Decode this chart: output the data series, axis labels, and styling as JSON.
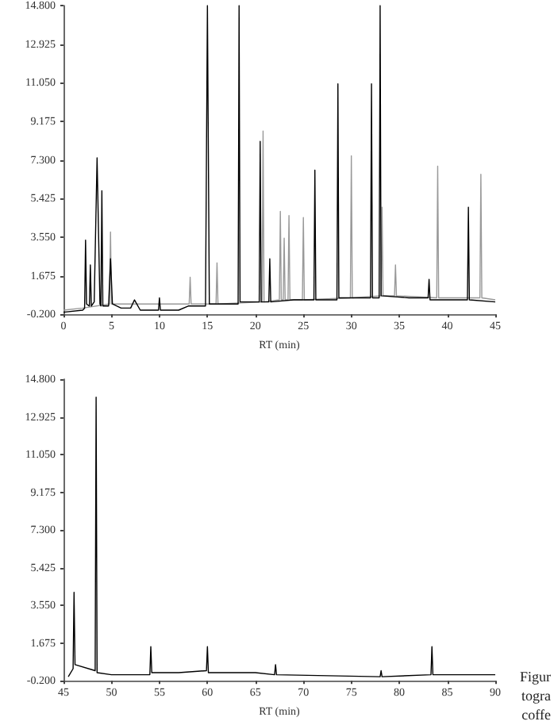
{
  "chart_data": [
    {
      "type": "line",
      "xlabel": "RT (min)",
      "marker": "none",
      "grid": false,
      "xlim": [
        0,
        45
      ],
      "xticks": [
        0,
        5,
        10,
        15,
        20,
        25,
        30,
        35,
        40,
        45
      ],
      "ylim": [
        -0.2,
        14.8
      ],
      "yticks": [
        {
          "value": -0.2,
          "label": "-0.200"
        },
        {
          "value": 1.675,
          "label": "1.675"
        },
        {
          "value": 3.55,
          "label": "3.550"
        },
        {
          "value": 5.425,
          "label": "5.425"
        },
        {
          "value": 7.3,
          "label": "7.300"
        },
        {
          "value": 9.175,
          "label": "9.175"
        },
        {
          "value": 11.05,
          "label": "11.050"
        },
        {
          "value": 12.925,
          "label": "12.925"
        },
        {
          "value": 14.8,
          "label": "14.800"
        }
      ],
      "series": [
        {
          "color": "#999999",
          "x": [
            0,
            2,
            4.8,
            4.9,
            5.0,
            13.1,
            13.2,
            13.3,
            15.9,
            16,
            16.1,
            20.7,
            20.8,
            20.9,
            22.5,
            22.6,
            22.7,
            22.9,
            23,
            23.1,
            23.4,
            23.5,
            23.6,
            24.9,
            25,
            25.1,
            29.9,
            30,
            30.1,
            33.1,
            33.2,
            33.3,
            34.5,
            34.6,
            34.7,
            38.9,
            39,
            39.1,
            43.4,
            43.5,
            43.6,
            45
          ],
          "values": [
            0,
            0.1,
            0.3,
            3.8,
            0.3,
            0.3,
            1.6,
            0.3,
            0.3,
            2.3,
            0.3,
            0.4,
            8.7,
            0.4,
            0.5,
            4.8,
            0.5,
            0.5,
            3.5,
            0.5,
            0.5,
            4.6,
            0.5,
            0.5,
            4.5,
            0.5,
            0.6,
            7.5,
            0.6,
            0.7,
            5,
            0.7,
            0.7,
            2.2,
            0.7,
            0.6,
            7,
            0.6,
            0.6,
            6.6,
            0.6,
            0.5
          ]
        },
        {
          "color": "#000000",
          "x": [
            0,
            2,
            2.2,
            2.3,
            2.4,
            2.7,
            2.8,
            2.9,
            3.2,
            3.5,
            3.8,
            3.9,
            4.0,
            4.1,
            4.7,
            4.9,
            5.1,
            6,
            7,
            7.4,
            8,
            9.9,
            10,
            10.1,
            12,
            13,
            14.8,
            15,
            15.2,
            17,
            18.2,
            18.3,
            18.4,
            20,
            20.4,
            20.5,
            20.6,
            21.4,
            21.5,
            21.6,
            24,
            26.1,
            26.2,
            26.3,
            28,
            28.5,
            28.6,
            28.7,
            30,
            32,
            32.1,
            32.2,
            32.9,
            33,
            33.1,
            36,
            38,
            38.1,
            38.2,
            42.1,
            42.2,
            42.3,
            45
          ],
          "values": [
            -0.1,
            0,
            0.1,
            3.4,
            0.3,
            0.2,
            2.2,
            0.2,
            0.4,
            7.4,
            0.3,
            0.2,
            5.8,
            0.2,
            0.2,
            2.5,
            0.3,
            0.1,
            0.1,
            0.5,
            0,
            0,
            0.6,
            0,
            0,
            0.2,
            0.2,
            14.8,
            0.3,
            0.3,
            0.3,
            14.8,
            0.4,
            0.4,
            0.4,
            8.2,
            0.4,
            0.4,
            2.5,
            0.4,
            0.5,
            0.5,
            6.8,
            0.5,
            0.5,
            0.5,
            11,
            0.6,
            0.6,
            0.6,
            11,
            0.6,
            0.6,
            14.8,
            0.7,
            0.6,
            0.6,
            1.5,
            0.5,
            0.5,
            5.0,
            0.5,
            0.4
          ]
        }
      ]
    },
    {
      "type": "line",
      "xlabel": "RT (min)",
      "marker": "none",
      "grid": false,
      "xlim": [
        45,
        90
      ],
      "xticks": [
        45,
        50,
        55,
        60,
        65,
        70,
        75,
        80,
        85,
        90
      ],
      "ylim": [
        -0.2,
        14.8
      ],
      "yticks": [
        {
          "value": -0.2,
          "label": "-0.200"
        },
        {
          "value": 1.675,
          "label": "1.675"
        },
        {
          "value": 3.55,
          "label": "3.550"
        },
        {
          "value": 5.425,
          "label": "5.425"
        },
        {
          "value": 7.3,
          "label": "7.300"
        },
        {
          "value": 9.175,
          "label": "9.175"
        },
        {
          "value": 11.05,
          "label": "11.050"
        },
        {
          "value": 12.925,
          "label": "12.925"
        },
        {
          "value": 14.8,
          "label": "14.800"
        }
      ],
      "annotations": [
        "Figur",
        "togra",
        "coffe"
      ],
      "series": [
        {
          "color": "#000000",
          "x": [
            45.5,
            46,
            46.1,
            46.2,
            48.3,
            48.4,
            48.5,
            50,
            54,
            54.1,
            54.2,
            57,
            59.9,
            60,
            60.1,
            65,
            67,
            67.1,
            67.2,
            78,
            78.1,
            78.2,
            83.3,
            83.4,
            83.5,
            90
          ],
          "values": [
            0,
            0.4,
            4.2,
            0.6,
            0.3,
            13.9,
            0.2,
            0.1,
            0.1,
            1.5,
            0.2,
            0.2,
            0.3,
            1.5,
            0.2,
            0.2,
            0.1,
            0.6,
            0.1,
            0,
            0.3,
            0,
            0.1,
            1.5,
            0.1,
            0.1
          ]
        }
      ]
    }
  ]
}
